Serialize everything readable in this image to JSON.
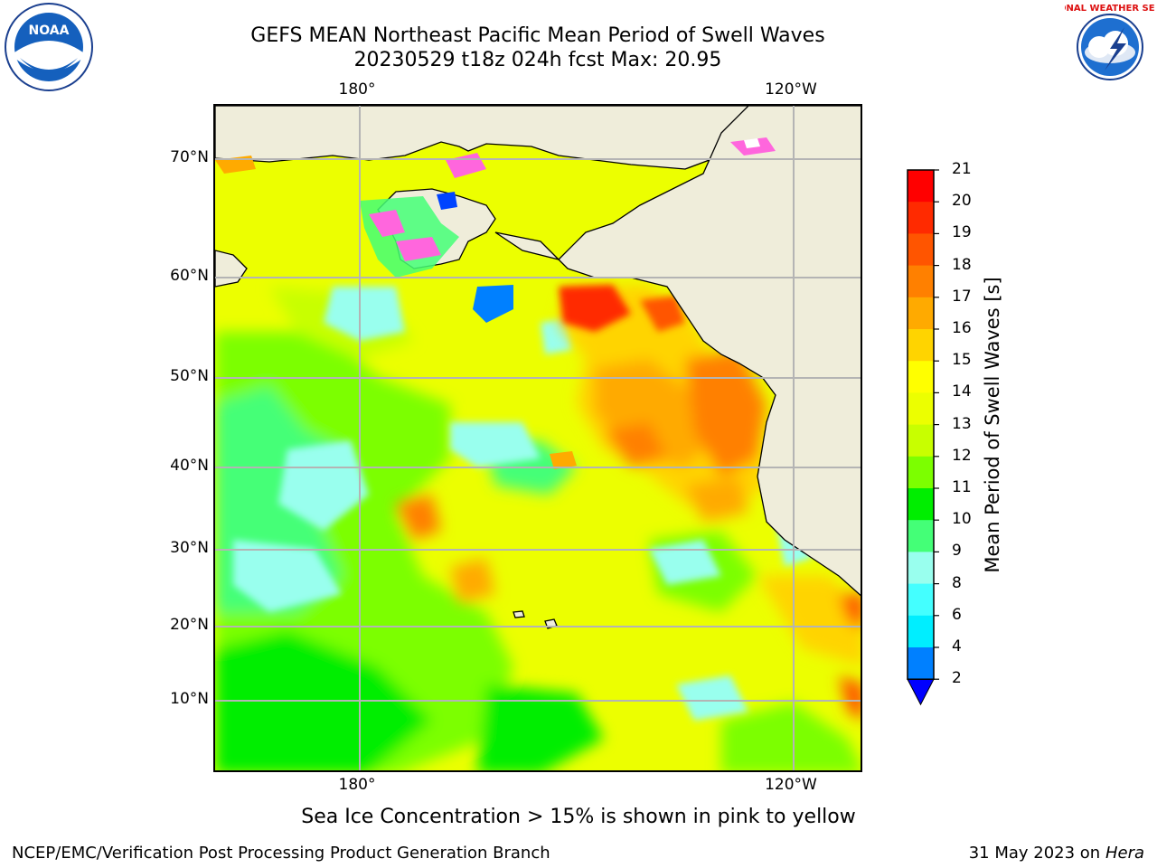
{
  "title": {
    "line1": "GEFS MEAN Northeast Pacific Mean Period of Swell Waves",
    "line2": "20230529 t18z 024h fcst   Max: 20.95"
  },
  "map": {
    "lat_labels": [
      "70°N",
      "60°N",
      "50°N",
      "40°N",
      "30°N",
      "20°N",
      "10°N"
    ],
    "lon_labels_top": [
      "180°",
      "120°W"
    ],
    "lon_labels_bottom": [
      "180°",
      "120°W"
    ],
    "land_color": "#efedda",
    "grid_color": "#b4b4b4"
  },
  "colorbar": {
    "title": "Mean Period of Swell Waves [s]",
    "ticks": [
      "21",
      "20",
      "19",
      "18",
      "17",
      "16",
      "15",
      "14",
      "13",
      "12",
      "11",
      "10",
      "9",
      "8",
      "6",
      "4",
      "2"
    ],
    "colors": [
      "#ff0000",
      "#ff2a00",
      "#ff5500",
      "#ff8000",
      "#ffaa00",
      "#ffd400",
      "#ffff00",
      "#ecff00",
      "#c8ff00",
      "#7cff00",
      "#00ee00",
      "#44ff77",
      "#99ffee",
      "#44ffff",
      "#00eeff",
      "#0080ff",
      "#0000ff"
    ]
  },
  "note": "Sea Ice Concentration > 15% is shown in pink to yellow",
  "footer": {
    "credit": "NCEP/EMC/Verification Post Processing Product Generation Branch",
    "date": "31 May 2023 on",
    "machine": "Hera"
  },
  "logos": {
    "noaa": "NOAA",
    "nws": "NATIONAL WEATHER SERVICE"
  }
}
